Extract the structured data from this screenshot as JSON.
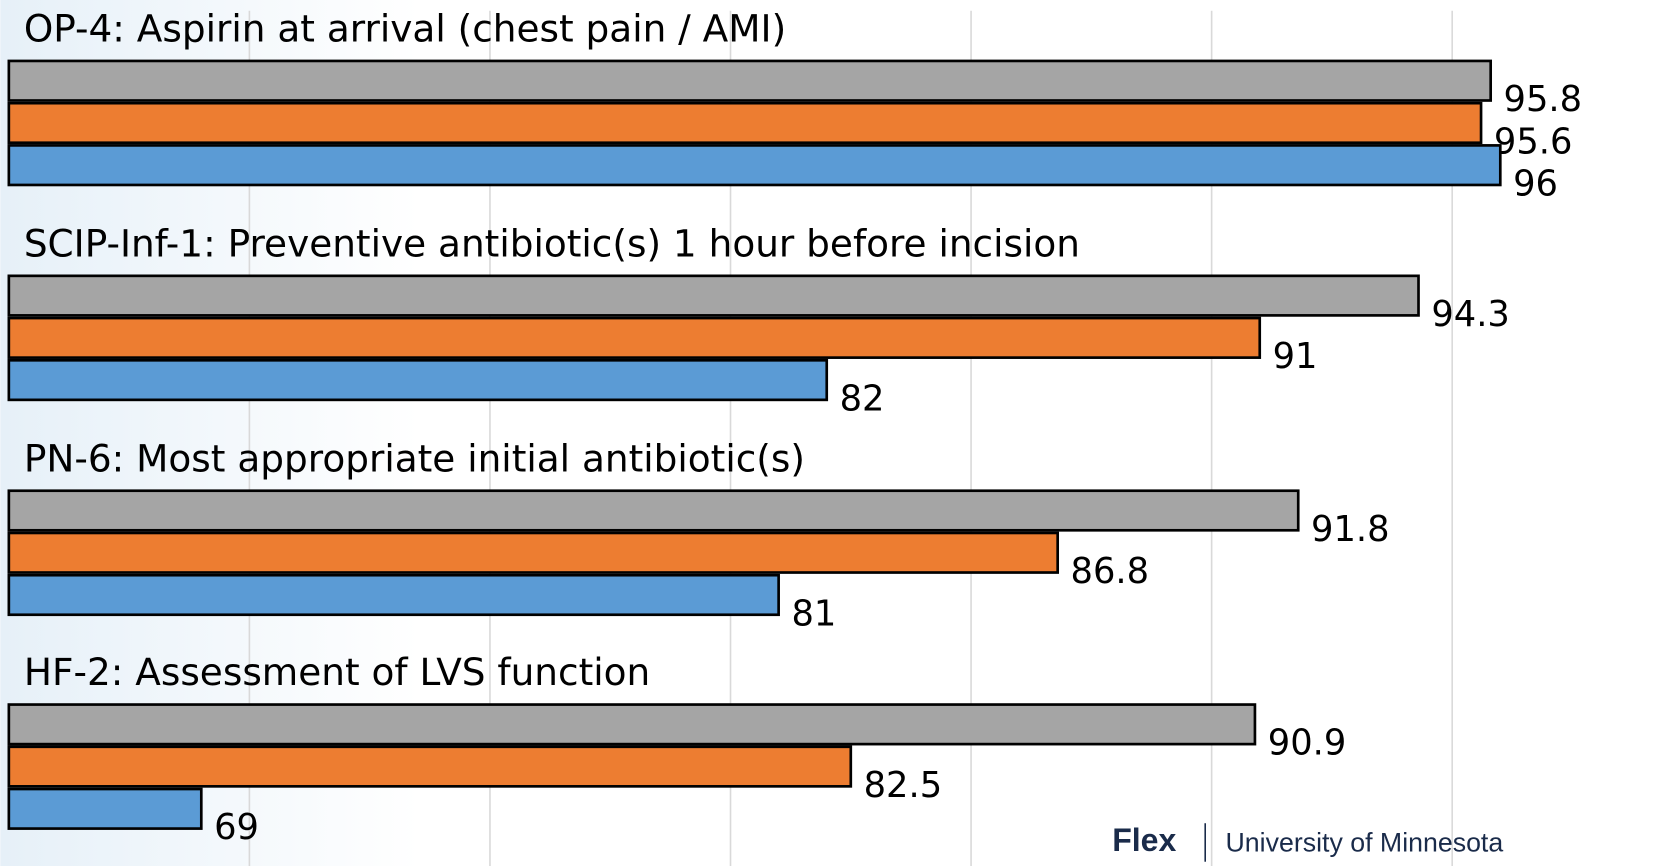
{
  "chart_data": {
    "type": "bar",
    "orientation": "horizontal",
    "categories": [
      "OP-4: Aspirin at arrival (chest pain / AMI)",
      "SCIP-Inf-1: Preventive antibiotic(s) 1 hour before incision",
      "PN-6: Most appropriate initial antibiotic(s)",
      "HF-2: Assessment of LVS function"
    ],
    "series": [
      {
        "color": "#a5a5a5",
        "values": [
          95.8,
          94.3,
          91.8,
          90.9
        ]
      },
      {
        "color": "#ed7d31",
        "values": [
          95.6,
          91,
          86.8,
          82.5
        ]
      },
      {
        "color": "#5b9bd5",
        "values": [
          96,
          82,
          81,
          69
        ]
      }
    ],
    "xlim": [
      65,
      100
    ],
    "xticks": [
      70,
      75,
      80,
      85,
      90,
      95
    ],
    "grid": true
  },
  "footer": {
    "brand": "Flex",
    "org": "University of Minnesota"
  }
}
